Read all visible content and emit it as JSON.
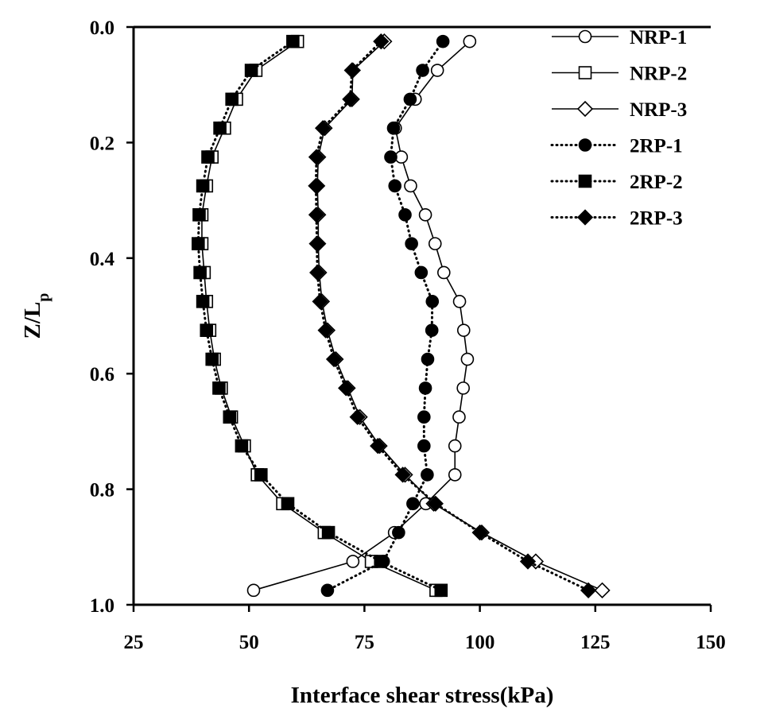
{
  "chart_data": {
    "type": "line",
    "title": "",
    "xlabel": "Interface shear stress(kPa)",
    "ylabel_main": "Z/L",
    "ylabel_sub": "p",
    "xlim": [
      25,
      150
    ],
    "ylim": [
      0.0,
      1.0
    ],
    "y_inverted": true,
    "x_ticks": [
      25,
      50,
      75,
      100,
      125,
      150
    ],
    "y_ticks": [
      0.0,
      0.2,
      0.4,
      0.6,
      0.8,
      1.0
    ],
    "x_tick_labels": [
      "25",
      "50",
      "75",
      "100",
      "125",
      "150"
    ],
    "y_tick_labels": [
      "0.0",
      "0.2",
      "0.4",
      "0.6",
      "0.8",
      "1.0"
    ],
    "grid": false,
    "legend_position": "top-right",
    "y": [
      0.025,
      0.075,
      0.125,
      0.175,
      0.225,
      0.275,
      0.325,
      0.375,
      0.425,
      0.475,
      0.525,
      0.575,
      0.625,
      0.675,
      0.725,
      0.775,
      0.825,
      0.875,
      0.925,
      0.975
    ],
    "series": [
      {
        "name": "NRP-1",
        "marker": "circle",
        "filled": false,
        "line": "solid",
        "x": [
          97.8,
          90.8,
          86.0,
          81.7,
          83.0,
          85.0,
          88.2,
          90.3,
          92.2,
          95.6,
          96.5,
          97.3,
          96.4,
          95.5,
          94.6,
          94.6,
          88.3,
          81.5,
          72.5,
          51.0
        ]
      },
      {
        "name": "NRP-2",
        "marker": "square",
        "filled": false,
        "line": "solid",
        "x": [
          60.5,
          51.5,
          47.3,
          44.7,
          42.0,
          40.8,
          39.8,
          39.8,
          40.3,
          40.8,
          41.5,
          42.5,
          44.0,
          46.2,
          49.0,
          51.8,
          57.3,
          66.3,
          76.5,
          90.5
        ]
      },
      {
        "name": "NRP-3",
        "marker": "diamond",
        "filled": false,
        "line": "solid",
        "x": [
          79.3,
          72.5,
          72.3,
          66.4,
          65.0,
          64.8,
          65.0,
          65.0,
          65.2,
          65.8,
          67.0,
          68.8,
          71.4,
          74.0,
          78.3,
          83.8,
          90.0,
          100.4,
          112.1,
          126.5
        ]
      },
      {
        "name": "2RP-1",
        "marker": "circle",
        "filled": true,
        "line": "dotted",
        "x": [
          92.0,
          87.6,
          84.9,
          81.3,
          80.7,
          81.6,
          83.8,
          85.2,
          87.3,
          89.7,
          89.6,
          88.7,
          88.2,
          87.9,
          87.9,
          88.6,
          85.5,
          82.4,
          79.1,
          67.0
        ]
      },
      {
        "name": "2RP-2",
        "marker": "square",
        "filled": true,
        "line": "dotted",
        "x": [
          59.5,
          50.5,
          46.3,
          43.7,
          41.1,
          40.0,
          39.2,
          39.0,
          39.4,
          40.0,
          40.8,
          42.0,
          43.5,
          45.8,
          48.4,
          52.6,
          58.4,
          67.2,
          78.5,
          91.6
        ]
      },
      {
        "name": "2RP-3",
        "marker": "diamond",
        "filled": true,
        "line": "dotted",
        "x": [
          78.6,
          72.3,
          71.9,
          66.0,
          64.6,
          64.5,
          64.6,
          64.7,
          64.8,
          65.4,
          66.6,
          68.4,
          71.0,
          73.5,
          77.9,
          83.3,
          90.4,
          100.0,
          110.4,
          123.5
        ]
      }
    ]
  }
}
